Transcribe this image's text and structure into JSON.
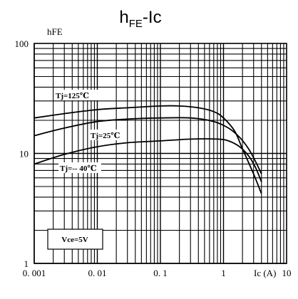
{
  "chart_data": {
    "type": "line",
    "title_main": "h",
    "title_sub": "FE",
    "title_rest": "-Ic",
    "ylabel": "hFE",
    "xlabel": "Ic (A)",
    "x_scale": "log",
    "y_scale": "log",
    "xlim": [
      0.001,
      10
    ],
    "ylim": [
      1,
      100
    ],
    "grid": true,
    "x_ticks": [
      {
        "value": 0.001,
        "label": "0. 001"
      },
      {
        "value": 0.01,
        "label": "0. 01"
      },
      {
        "value": 0.1,
        "label": "0. 1"
      },
      {
        "value": 1,
        "label": "1"
      },
      {
        "value": 10,
        "label": "10"
      }
    ],
    "y_ticks": [
      {
        "value": 1,
        "label": "1"
      },
      {
        "value": 10,
        "label": "10"
      },
      {
        "value": 100,
        "label": "100"
      }
    ],
    "series": [
      {
        "name": "Tj=125℃",
        "x": [
          0.001,
          0.003,
          0.01,
          0.03,
          0.1,
          0.2,
          0.4,
          0.7,
          1.0,
          1.5,
          2.0,
          3.0,
          4.0
        ],
        "y": [
          21,
          23,
          25,
          26,
          27,
          27,
          26,
          24,
          21,
          16,
          11,
          6.5,
          4.3
        ]
      },
      {
        "name": "Tj=25℃",
        "x": [
          0.001,
          0.003,
          0.01,
          0.03,
          0.1,
          0.3,
          0.7,
          1.2,
          1.8,
          2.5,
          3.2,
          4.0
        ],
        "y": [
          14.5,
          17,
          19.5,
          20.5,
          21,
          21,
          19.5,
          17,
          14,
          11,
          8.5,
          6.5
        ]
      },
      {
        "name": "Tj=-40℃",
        "x": [
          0.001,
          0.003,
          0.01,
          0.03,
          0.1,
          0.3,
          0.8,
          1.2,
          1.8,
          2.5,
          3.2,
          4.0
        ],
        "y": [
          8,
          9.8,
          11.5,
          12.5,
          13,
          13.5,
          13.5,
          13,
          11.5,
          9.5,
          7.5,
          5.5
        ]
      }
    ],
    "annotations": [
      {
        "text": "Tj=125℃",
        "series": 0
      },
      {
        "text": "Tj=25℃",
        "series": 1
      },
      {
        "text": "Tj=-- 40℃",
        "series": 2
      },
      {
        "text": "Vce=5V",
        "boxed": true
      }
    ]
  }
}
